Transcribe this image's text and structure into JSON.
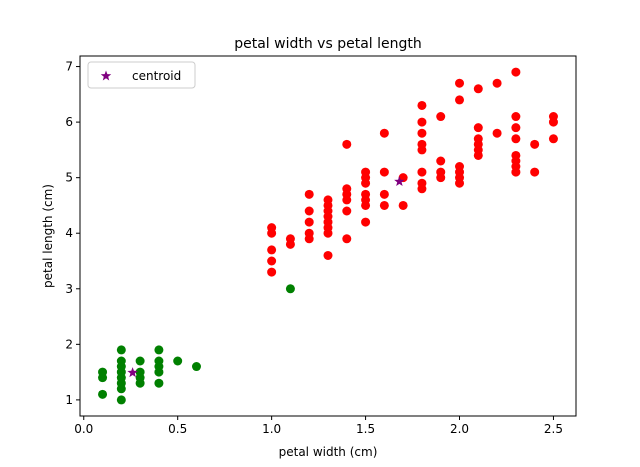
{
  "chart_data": {
    "type": "scatter",
    "title": "petal width vs petal length",
    "xlabel": "petal width (cm)",
    "ylabel": "petal length (cm)",
    "xlim": [
      -0.02,
      2.62
    ],
    "ylim": [
      0.71,
      7.19
    ],
    "xticks": [
      "0.0",
      "0.5",
      "1.0",
      "1.5",
      "2.0",
      "2.5"
    ],
    "yticks": [
      "1",
      "2",
      "3",
      "4",
      "5",
      "6",
      "7"
    ],
    "grid": false,
    "legend_position": "top-left",
    "series": [
      {
        "color": "#008000",
        "marker": "circle",
        "points": [
          [
            0.1,
            1.1
          ],
          [
            0.1,
            1.4
          ],
          [
            0.1,
            1.5
          ],
          [
            0.2,
            1.0
          ],
          [
            0.2,
            1.2
          ],
          [
            0.2,
            1.3
          ],
          [
            0.2,
            1.4
          ],
          [
            0.2,
            1.5
          ],
          [
            0.2,
            1.6
          ],
          [
            0.2,
            1.7
          ],
          [
            0.2,
            1.9
          ],
          [
            0.3,
            1.3
          ],
          [
            0.3,
            1.4
          ],
          [
            0.3,
            1.5
          ],
          [
            0.3,
            1.7
          ],
          [
            0.4,
            1.3
          ],
          [
            0.4,
            1.5
          ],
          [
            0.4,
            1.6
          ],
          [
            0.4,
            1.7
          ],
          [
            0.4,
            1.9
          ],
          [
            0.5,
            1.7
          ],
          [
            0.6,
            1.6
          ],
          [
            1.1,
            3.0
          ]
        ]
      },
      {
        "color": "#ff0000",
        "marker": "circle",
        "points": [
          [
            1.0,
            3.3
          ],
          [
            1.0,
            3.5
          ],
          [
            1.0,
            3.7
          ],
          [
            1.0,
            4.0
          ],
          [
            1.0,
            4.1
          ],
          [
            1.1,
            3.8
          ],
          [
            1.1,
            3.9
          ],
          [
            1.2,
            3.9
          ],
          [
            1.2,
            4.0
          ],
          [
            1.2,
            4.2
          ],
          [
            1.2,
            4.4
          ],
          [
            1.2,
            4.7
          ],
          [
            1.3,
            3.6
          ],
          [
            1.3,
            4.0
          ],
          [
            1.3,
            4.1
          ],
          [
            1.3,
            4.2
          ],
          [
            1.3,
            4.3
          ],
          [
            1.3,
            4.4
          ],
          [
            1.3,
            4.5
          ],
          [
            1.3,
            4.6
          ],
          [
            1.4,
            3.9
          ],
          [
            1.4,
            4.4
          ],
          [
            1.4,
            4.6
          ],
          [
            1.4,
            4.7
          ],
          [
            1.4,
            4.8
          ],
          [
            1.4,
            5.6
          ],
          [
            1.5,
            4.2
          ],
          [
            1.5,
            4.5
          ],
          [
            1.5,
            4.6
          ],
          [
            1.5,
            4.7
          ],
          [
            1.5,
            4.9
          ],
          [
            1.5,
            5.0
          ],
          [
            1.5,
            5.1
          ],
          [
            1.6,
            4.5
          ],
          [
            1.6,
            4.7
          ],
          [
            1.6,
            5.1
          ],
          [
            1.6,
            5.8
          ],
          [
            1.7,
            4.5
          ],
          [
            1.7,
            5.0
          ],
          [
            1.8,
            4.8
          ],
          [
            1.8,
            4.9
          ],
          [
            1.8,
            5.1
          ],
          [
            1.8,
            5.5
          ],
          [
            1.8,
            5.6
          ],
          [
            1.8,
            5.8
          ],
          [
            1.8,
            6.0
          ],
          [
            1.8,
            6.3
          ],
          [
            1.9,
            5.0
          ],
          [
            1.9,
            5.1
          ],
          [
            1.9,
            5.3
          ],
          [
            1.9,
            6.1
          ],
          [
            2.0,
            4.9
          ],
          [
            2.0,
            5.0
          ],
          [
            2.0,
            5.1
          ],
          [
            2.0,
            5.2
          ],
          [
            2.0,
            6.4
          ],
          [
            2.0,
            6.7
          ],
          [
            2.1,
            5.4
          ],
          [
            2.1,
            5.5
          ],
          [
            2.1,
            5.6
          ],
          [
            2.1,
            5.7
          ],
          [
            2.1,
            5.9
          ],
          [
            2.1,
            6.6
          ],
          [
            2.2,
            5.8
          ],
          [
            2.2,
            6.7
          ],
          [
            2.3,
            5.1
          ],
          [
            2.3,
            5.2
          ],
          [
            2.3,
            5.3
          ],
          [
            2.3,
            5.4
          ],
          [
            2.3,
            5.7
          ],
          [
            2.3,
            5.9
          ],
          [
            2.3,
            6.1
          ],
          [
            2.3,
            6.9
          ],
          [
            2.4,
            5.1
          ],
          [
            2.4,
            5.6
          ],
          [
            2.5,
            5.7
          ],
          [
            2.5,
            6.0
          ],
          [
            2.5,
            6.1
          ]
        ]
      },
      {
        "name": "centroid",
        "color": "#800080",
        "marker": "star",
        "points": [
          [
            0.26,
            1.49
          ],
          [
            1.68,
            4.93
          ]
        ]
      }
    ]
  }
}
